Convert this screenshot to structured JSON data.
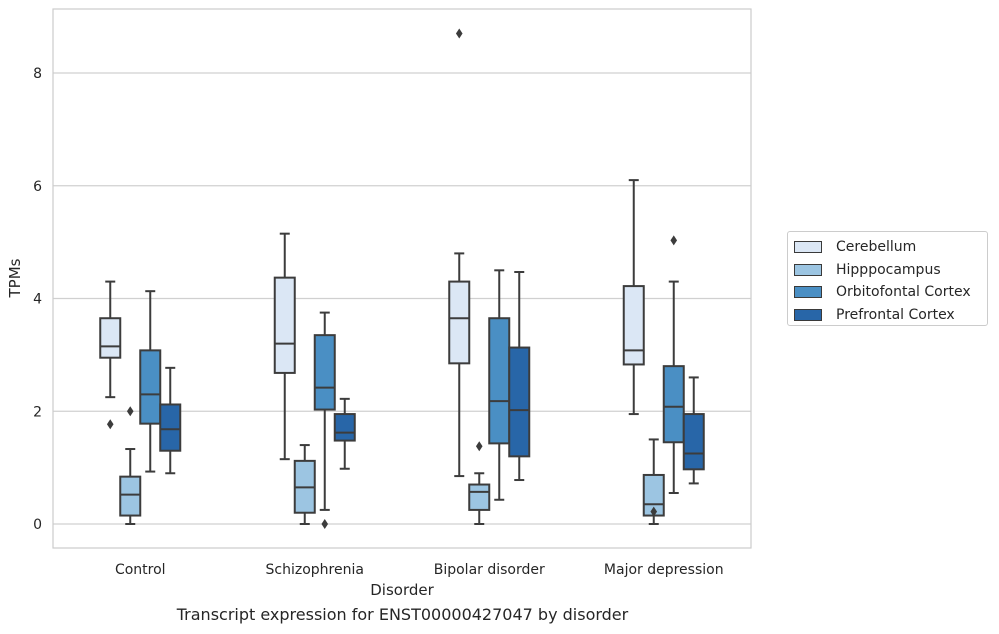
{
  "caption": "Transcript expression for ENST00000427047 by disorder",
  "chart_data": {
    "type": "boxplot",
    "xlabel": "Disorder",
    "ylabel": "TPMs",
    "ylim": [
      -0.42,
      9.1
    ],
    "yticks": [
      0,
      2,
      4,
      6,
      8
    ],
    "grid": true,
    "legend_position": "right",
    "categories": [
      "Control",
      "Schizophrenia",
      "Bipolar disorder",
      "Major depression"
    ],
    "series": [
      {
        "name": "Cerebellum",
        "color": "#dbe7f5",
        "boxes": [
          {
            "whislo": 2.25,
            "q1": 2.95,
            "med": 3.15,
            "q3": 3.65,
            "whishi": 4.3,
            "fliers": [
              1.77
            ]
          },
          {
            "whislo": 1.15,
            "q1": 2.68,
            "med": 3.2,
            "q3": 4.37,
            "whishi": 5.15,
            "fliers": []
          },
          {
            "whislo": 0.85,
            "q1": 2.85,
            "med": 3.65,
            "q3": 4.3,
            "whishi": 4.8,
            "fliers": [
              8.7
            ]
          },
          {
            "whislo": 1.95,
            "q1": 2.83,
            "med": 3.08,
            "q3": 4.22,
            "whishi": 6.1,
            "fliers": []
          }
        ]
      },
      {
        "name": "Hipppocampus",
        "color": "#9cc5e2",
        "boxes": [
          {
            "whislo": 0.0,
            "q1": 0.15,
            "med": 0.52,
            "q3": 0.84,
            "whishi": 1.33,
            "fliers": [
              2.0
            ]
          },
          {
            "whislo": 0.0,
            "q1": 0.2,
            "med": 0.65,
            "q3": 1.12,
            "whishi": 1.4,
            "fliers": []
          },
          {
            "whislo": 0.0,
            "q1": 0.25,
            "med": 0.57,
            "q3": 0.7,
            "whishi": 0.9,
            "fliers": [
              1.38
            ]
          },
          {
            "whislo": 0.0,
            "q1": 0.15,
            "med": 0.35,
            "q3": 0.87,
            "whishi": 1.5,
            "fliers": [
              0.22
            ]
          }
        ]
      },
      {
        "name": "Orbitofontal Cortex",
        "color": "#4a8fc4",
        "boxes": [
          {
            "whislo": 0.93,
            "q1": 1.78,
            "med": 2.3,
            "q3": 3.08,
            "whishi": 4.13,
            "fliers": []
          },
          {
            "whislo": 0.25,
            "q1": 2.03,
            "med": 2.42,
            "q3": 3.35,
            "whishi": 3.75,
            "fliers": [
              0.0
            ]
          },
          {
            "whislo": 0.43,
            "q1": 1.43,
            "med": 2.18,
            "q3": 3.65,
            "whishi": 4.5,
            "fliers": []
          },
          {
            "whislo": 0.55,
            "q1": 1.45,
            "med": 2.08,
            "q3": 2.8,
            "whishi": 4.3,
            "fliers": [
              5.03
            ]
          }
        ]
      },
      {
        "name": "Prefrontal Cortex",
        "color": "#2866a8",
        "boxes": [
          {
            "whislo": 0.9,
            "q1": 1.3,
            "med": 1.68,
            "q3": 2.12,
            "whishi": 2.77,
            "fliers": []
          },
          {
            "whislo": 0.98,
            "q1": 1.48,
            "med": 1.62,
            "q3": 1.95,
            "whishi": 2.22,
            "fliers": []
          },
          {
            "whislo": 0.78,
            "q1": 1.2,
            "med": 2.02,
            "q3": 3.13,
            "whishi": 4.47,
            "fliers": []
          },
          {
            "whislo": 0.72,
            "q1": 0.97,
            "med": 1.25,
            "q3": 1.95,
            "whishi": 2.6,
            "fliers": []
          }
        ]
      }
    ]
  }
}
